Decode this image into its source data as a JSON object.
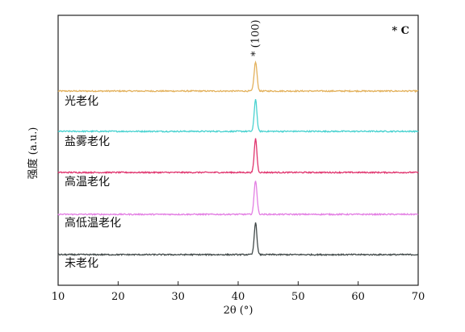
{
  "chart_data": {
    "type": "line",
    "title": "",
    "xlabel": "2θ (°)",
    "ylabel": "强度 (a.u.)",
    "xlim": [
      10,
      70
    ],
    "xticks": [
      10,
      20,
      30,
      40,
      50,
      60,
      70
    ],
    "yticks": [],
    "grid": false,
    "legend": "none",
    "corner_label": "* C",
    "peak_annotation": "* (100)",
    "peak_position": 42.9,
    "series": [
      {
        "name": "光老化",
        "color": "#e3b15c",
        "peak_height": 0.9,
        "peak_width": 0.24
      },
      {
        "name": "盐雾老化",
        "color": "#48d2d0",
        "peak_height": 1.0,
        "peak_width": 0.22
      },
      {
        "name": "高温老化",
        "color": "#e0346e",
        "peak_height": 1.05,
        "peak_width": 0.22
      },
      {
        "name": "高低温老化",
        "color": "#e37ee3",
        "peak_height": 1.05,
        "peak_width": 0.24
      },
      {
        "name": "未老化",
        "color": "#424a4a",
        "peak_height": 1.0,
        "peak_width": 0.22
      }
    ]
  }
}
